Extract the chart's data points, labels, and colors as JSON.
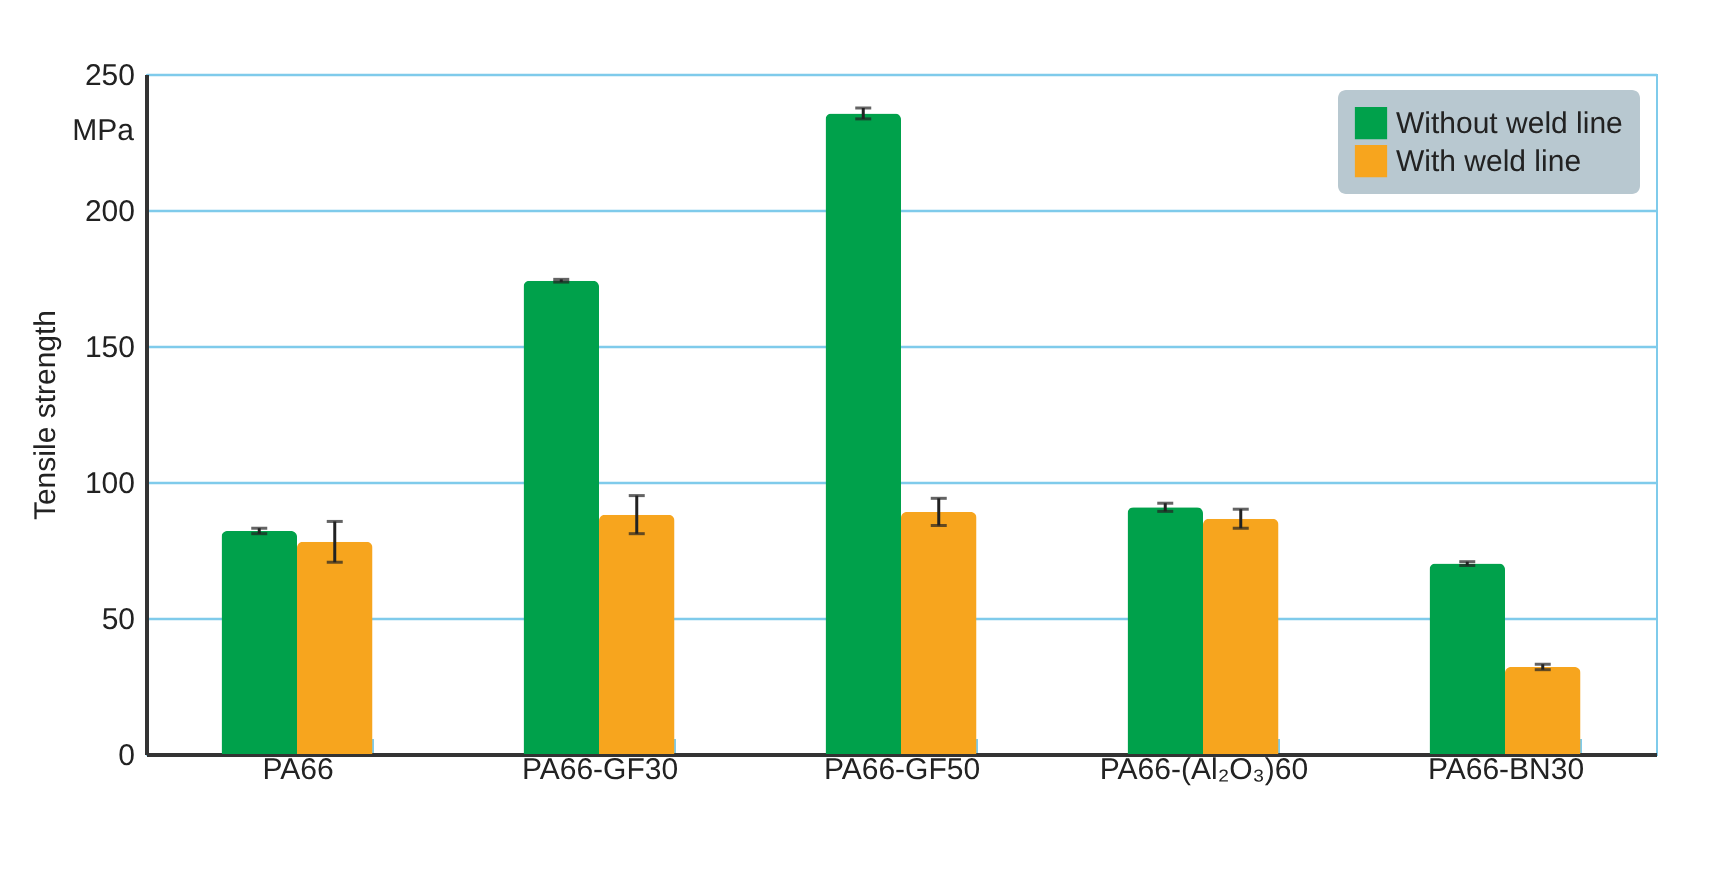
{
  "chart_data": {
    "type": "bar",
    "ylabel": "Tensile strength",
    "annotations": [
      "MPa"
    ],
    "categories": [
      "PA66",
      "PA66-GF30",
      "PA66-GF50",
      "PA66-(Al₂O₃)60",
      "PA66-BN30"
    ],
    "series": [
      {
        "name": "Without weld line",
        "color": "#00a14b",
        "values": [
          82,
          174,
          235.5,
          90.7,
          70
        ],
        "errors": [
          1,
          0.5,
          2,
          1.5,
          0.7
        ]
      },
      {
        "name": "With weld line",
        "color": "#f7a51e",
        "values": [
          78,
          88,
          89,
          86.5,
          32
        ],
        "errors": [
          7.5,
          7,
          5,
          3.5,
          1
        ]
      }
    ],
    "ylim": [
      0,
      250
    ],
    "yticks": [
      0,
      50,
      100,
      150,
      200,
      250
    ],
    "grid": "y",
    "legend": "top right"
  }
}
